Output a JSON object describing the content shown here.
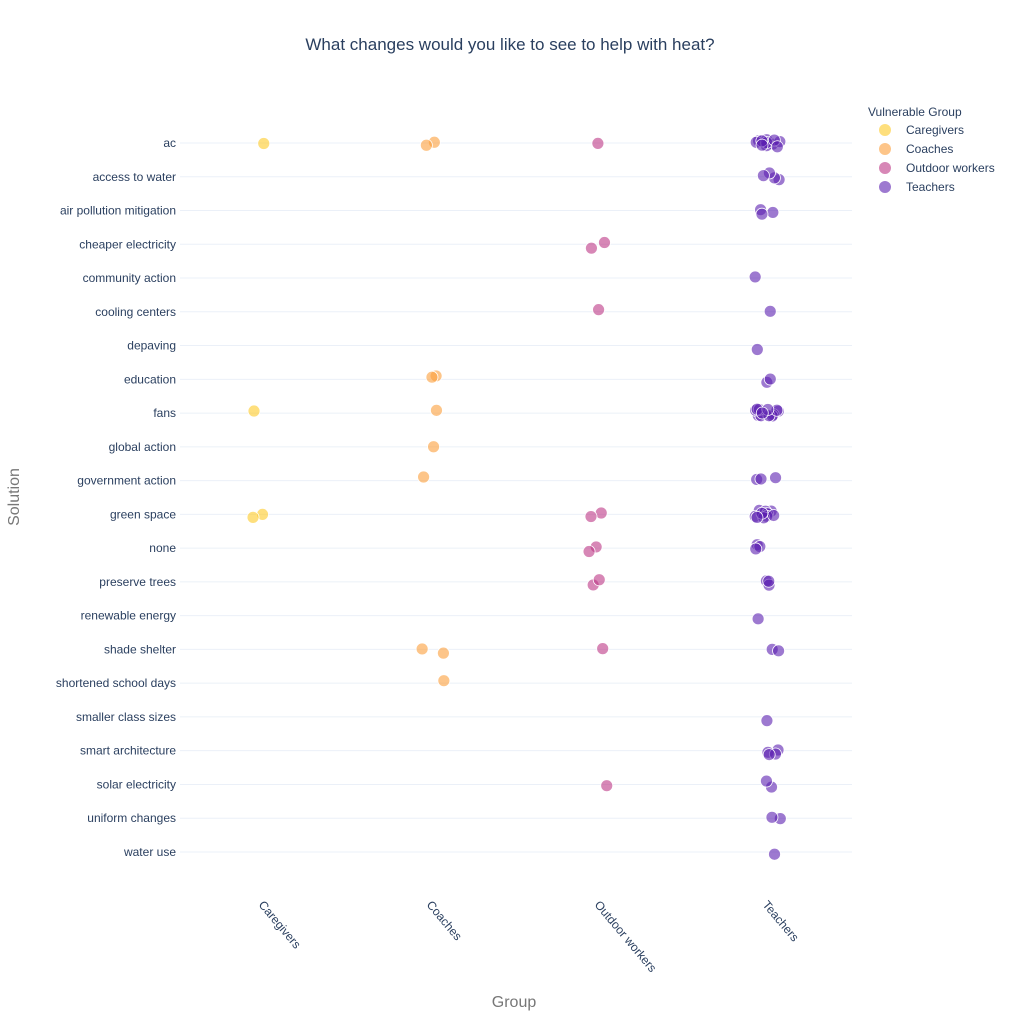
{
  "chart_data": {
    "type": "scatter",
    "subtype": "strip",
    "title": "What changes would you like to see to help with heat?",
    "xlabel": "Group",
    "ylabel": "Solution",
    "categories_x": [
      "Caregivers",
      "Coaches",
      "Outdoor workers",
      "Teachers"
    ],
    "categories_y": [
      "ac",
      "access to water",
      "air pollution mitigation",
      "cheaper electricity",
      "community action",
      "cooling centers",
      "depaving",
      "education",
      "fans",
      "global action",
      "government action",
      "green space",
      "none",
      "preserve trees",
      "renewable energy",
      "shade shelter",
      "shortened school days",
      "smaller class sizes",
      "smart architecture",
      "solar electricity",
      "uniform changes",
      "water use"
    ],
    "legend": {
      "title": "Vulnerable Group",
      "placement": "top-right"
    },
    "grid": true,
    "series": [
      {
        "name": "Caregivers",
        "color": "#fdca26",
        "counts": {
          "ac": 1,
          "fans": 1,
          "green space": 2
        }
      },
      {
        "name": "Coaches",
        "color": "#fb9f3a",
        "counts": {
          "ac": 2,
          "education": 2,
          "fans": 1,
          "global action": 1,
          "government action": 1,
          "shade shelter": 2,
          "shortened school days": 1
        }
      },
      {
        "name": "Outdoor workers",
        "color": "#bd3786",
        "counts": {
          "ac": 1,
          "cheaper electricity": 2,
          "cooling centers": 1,
          "green space": 2,
          "none": 2,
          "preserve trees": 2,
          "shade shelter": 1,
          "solar electricity": 1
        }
      },
      {
        "name": "Teachers",
        "color": "#5c1fb0",
        "counts": {
          "ac": 12,
          "access to water": 4,
          "air pollution mitigation": 3,
          "community action": 1,
          "cooling centers": 1,
          "depaving": 1,
          "education": 2,
          "fans": 12,
          "government action": 3,
          "green space": 10,
          "none": 3,
          "preserve trees": 3,
          "renewable energy": 1,
          "shade shelter": 2,
          "smaller class sizes": 1,
          "smart architecture": 4,
          "solar electricity": 2,
          "uniform changes": 2,
          "water use": 1
        }
      }
    ]
  }
}
